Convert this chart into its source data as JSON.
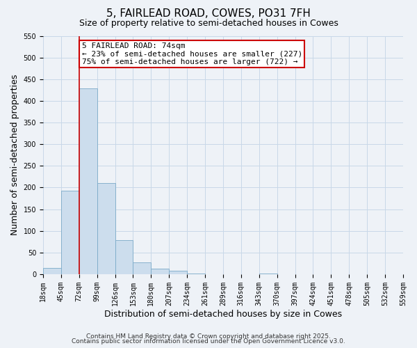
{
  "title": "5, FAIRLEAD ROAD, COWES, PO31 7FH",
  "subtitle": "Size of property relative to semi-detached houses in Cowes",
  "xlabel": "Distribution of semi-detached houses by size in Cowes",
  "ylabel": "Number of semi-detached properties",
  "bar_values": [
    15,
    193,
    428,
    211,
    78,
    27,
    13,
    8,
    1,
    0,
    0,
    0,
    1,
    0,
    0,
    0,
    0,
    0,
    0,
    0
  ],
  "bin_labels": [
    "18sqm",
    "45sqm",
    "72sqm",
    "99sqm",
    "126sqm",
    "153sqm",
    "180sqm",
    "207sqm",
    "234sqm",
    "261sqm",
    "289sqm",
    "316sqm",
    "343sqm",
    "370sqm",
    "397sqm",
    "424sqm",
    "451sqm",
    "478sqm",
    "505sqm",
    "532sqm",
    "559sqm"
  ],
  "bar_color": "#ccdded",
  "bar_edge_color": "#7aaac8",
  "grid_color": "#c8d8e8",
  "background_color": "#eef2f7",
  "vline_x": 2,
  "vline_color": "#cc0000",
  "annotation_title": "5 FAIRLEAD ROAD: 74sqm",
  "annotation_line1": "← 23% of semi-detached houses are smaller (227)",
  "annotation_line2": "75% of semi-detached houses are larger (722) →",
  "annotation_box_facecolor": "#ffffff",
  "annotation_box_edgecolor": "#cc0000",
  "ylim": [
    0,
    550
  ],
  "yticks": [
    0,
    50,
    100,
    150,
    200,
    250,
    300,
    350,
    400,
    450,
    500,
    550
  ],
  "footer1": "Contains HM Land Registry data © Crown copyright and database right 2025.",
  "footer2": "Contains public sector information licensed under the Open Government Licence v3.0.",
  "title_fontsize": 11,
  "subtitle_fontsize": 9,
  "axis_label_fontsize": 9,
  "tick_fontsize": 7,
  "annotation_fontsize": 8,
  "footer_fontsize": 6.5
}
